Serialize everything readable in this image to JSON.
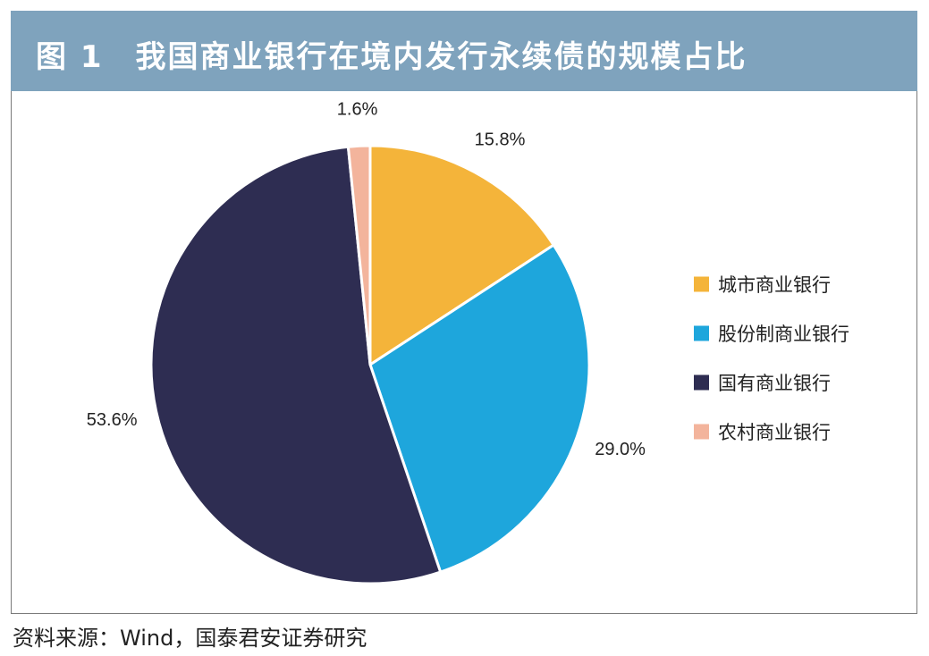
{
  "title": "图 1　我国商业银行在境内发行永续债的规模占比",
  "source": "资料来源：Wind，国泰君安证券研究",
  "chart_data": {
    "type": "pie",
    "title": "图 1　我国商业银行在境内发行永续债的规模占比",
    "legend_position": "right",
    "start_angle_deg": 0,
    "direction": "clockwise",
    "slices": [
      {
        "label": "城市商业银行",
        "value": 15.8,
        "display": "15.8%",
        "color": "#f4b43a"
      },
      {
        "label": "股份制商业银行",
        "value": 29.0,
        "display": "29.0%",
        "color": "#1ea6dc"
      },
      {
        "label": "国有商业银行",
        "value": 53.6,
        "display": "53.6%",
        "color": "#2e2d52"
      },
      {
        "label": "农村商业银行",
        "value": 1.6,
        "display": "1.6%",
        "color": "#f3b49c"
      }
    ]
  }
}
